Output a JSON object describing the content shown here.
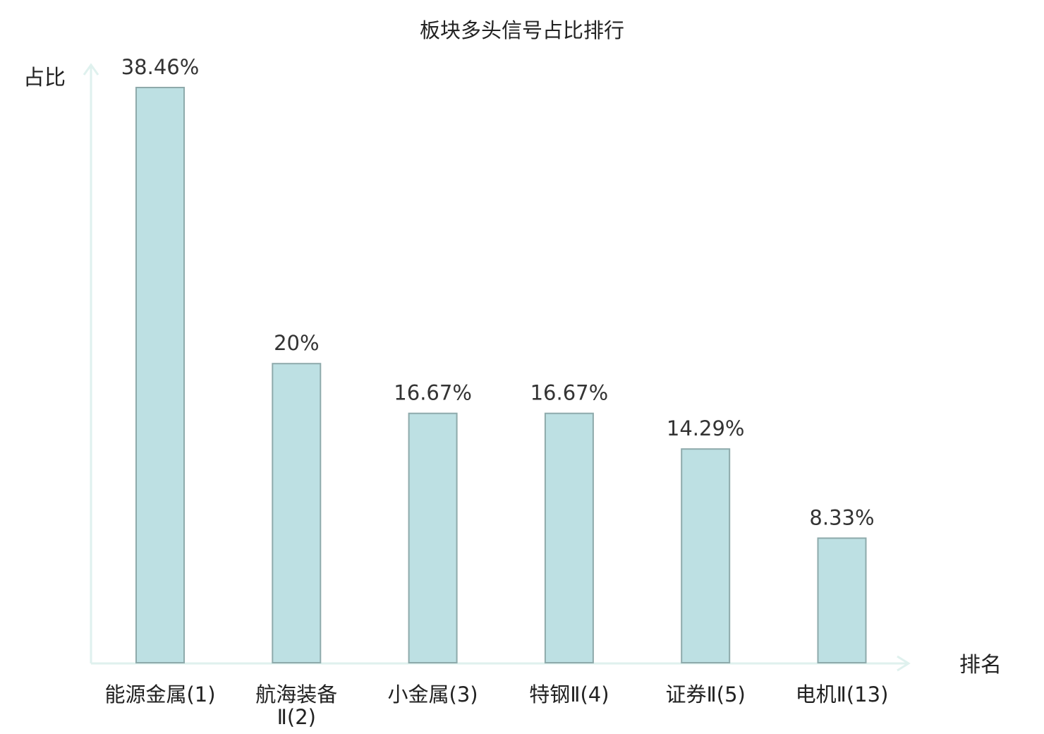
{
  "chart_data": {
    "type": "bar",
    "title": "板块多头信号占比排行",
    "ylabel": "占比",
    "xlabel": "排名",
    "categories": [
      [
        "能源金属(1)"
      ],
      [
        "航海装备",
        "Ⅱ(2)"
      ],
      [
        "小金属(3)"
      ],
      [
        "特钢Ⅱ(4)"
      ],
      [
        "证券Ⅱ(5)"
      ],
      [
        "电机Ⅱ(13)"
      ]
    ],
    "values": [
      38.46,
      20,
      16.67,
      16.67,
      14.29,
      8.33
    ],
    "value_labels": [
      "38.46%",
      "20%",
      "16.67%",
      "16.67%",
      "14.29%",
      "8.33%"
    ],
    "ylim": [
      0,
      40
    ],
    "grid": false,
    "colors": {
      "bar_fill": "#bde0e3",
      "bar_stroke": "#8eaaab",
      "axis": "#dff1ee",
      "highlight": "#e8262b",
      "text": "#222222",
      "value_text": "#333333"
    },
    "highlight_index": 5
  }
}
